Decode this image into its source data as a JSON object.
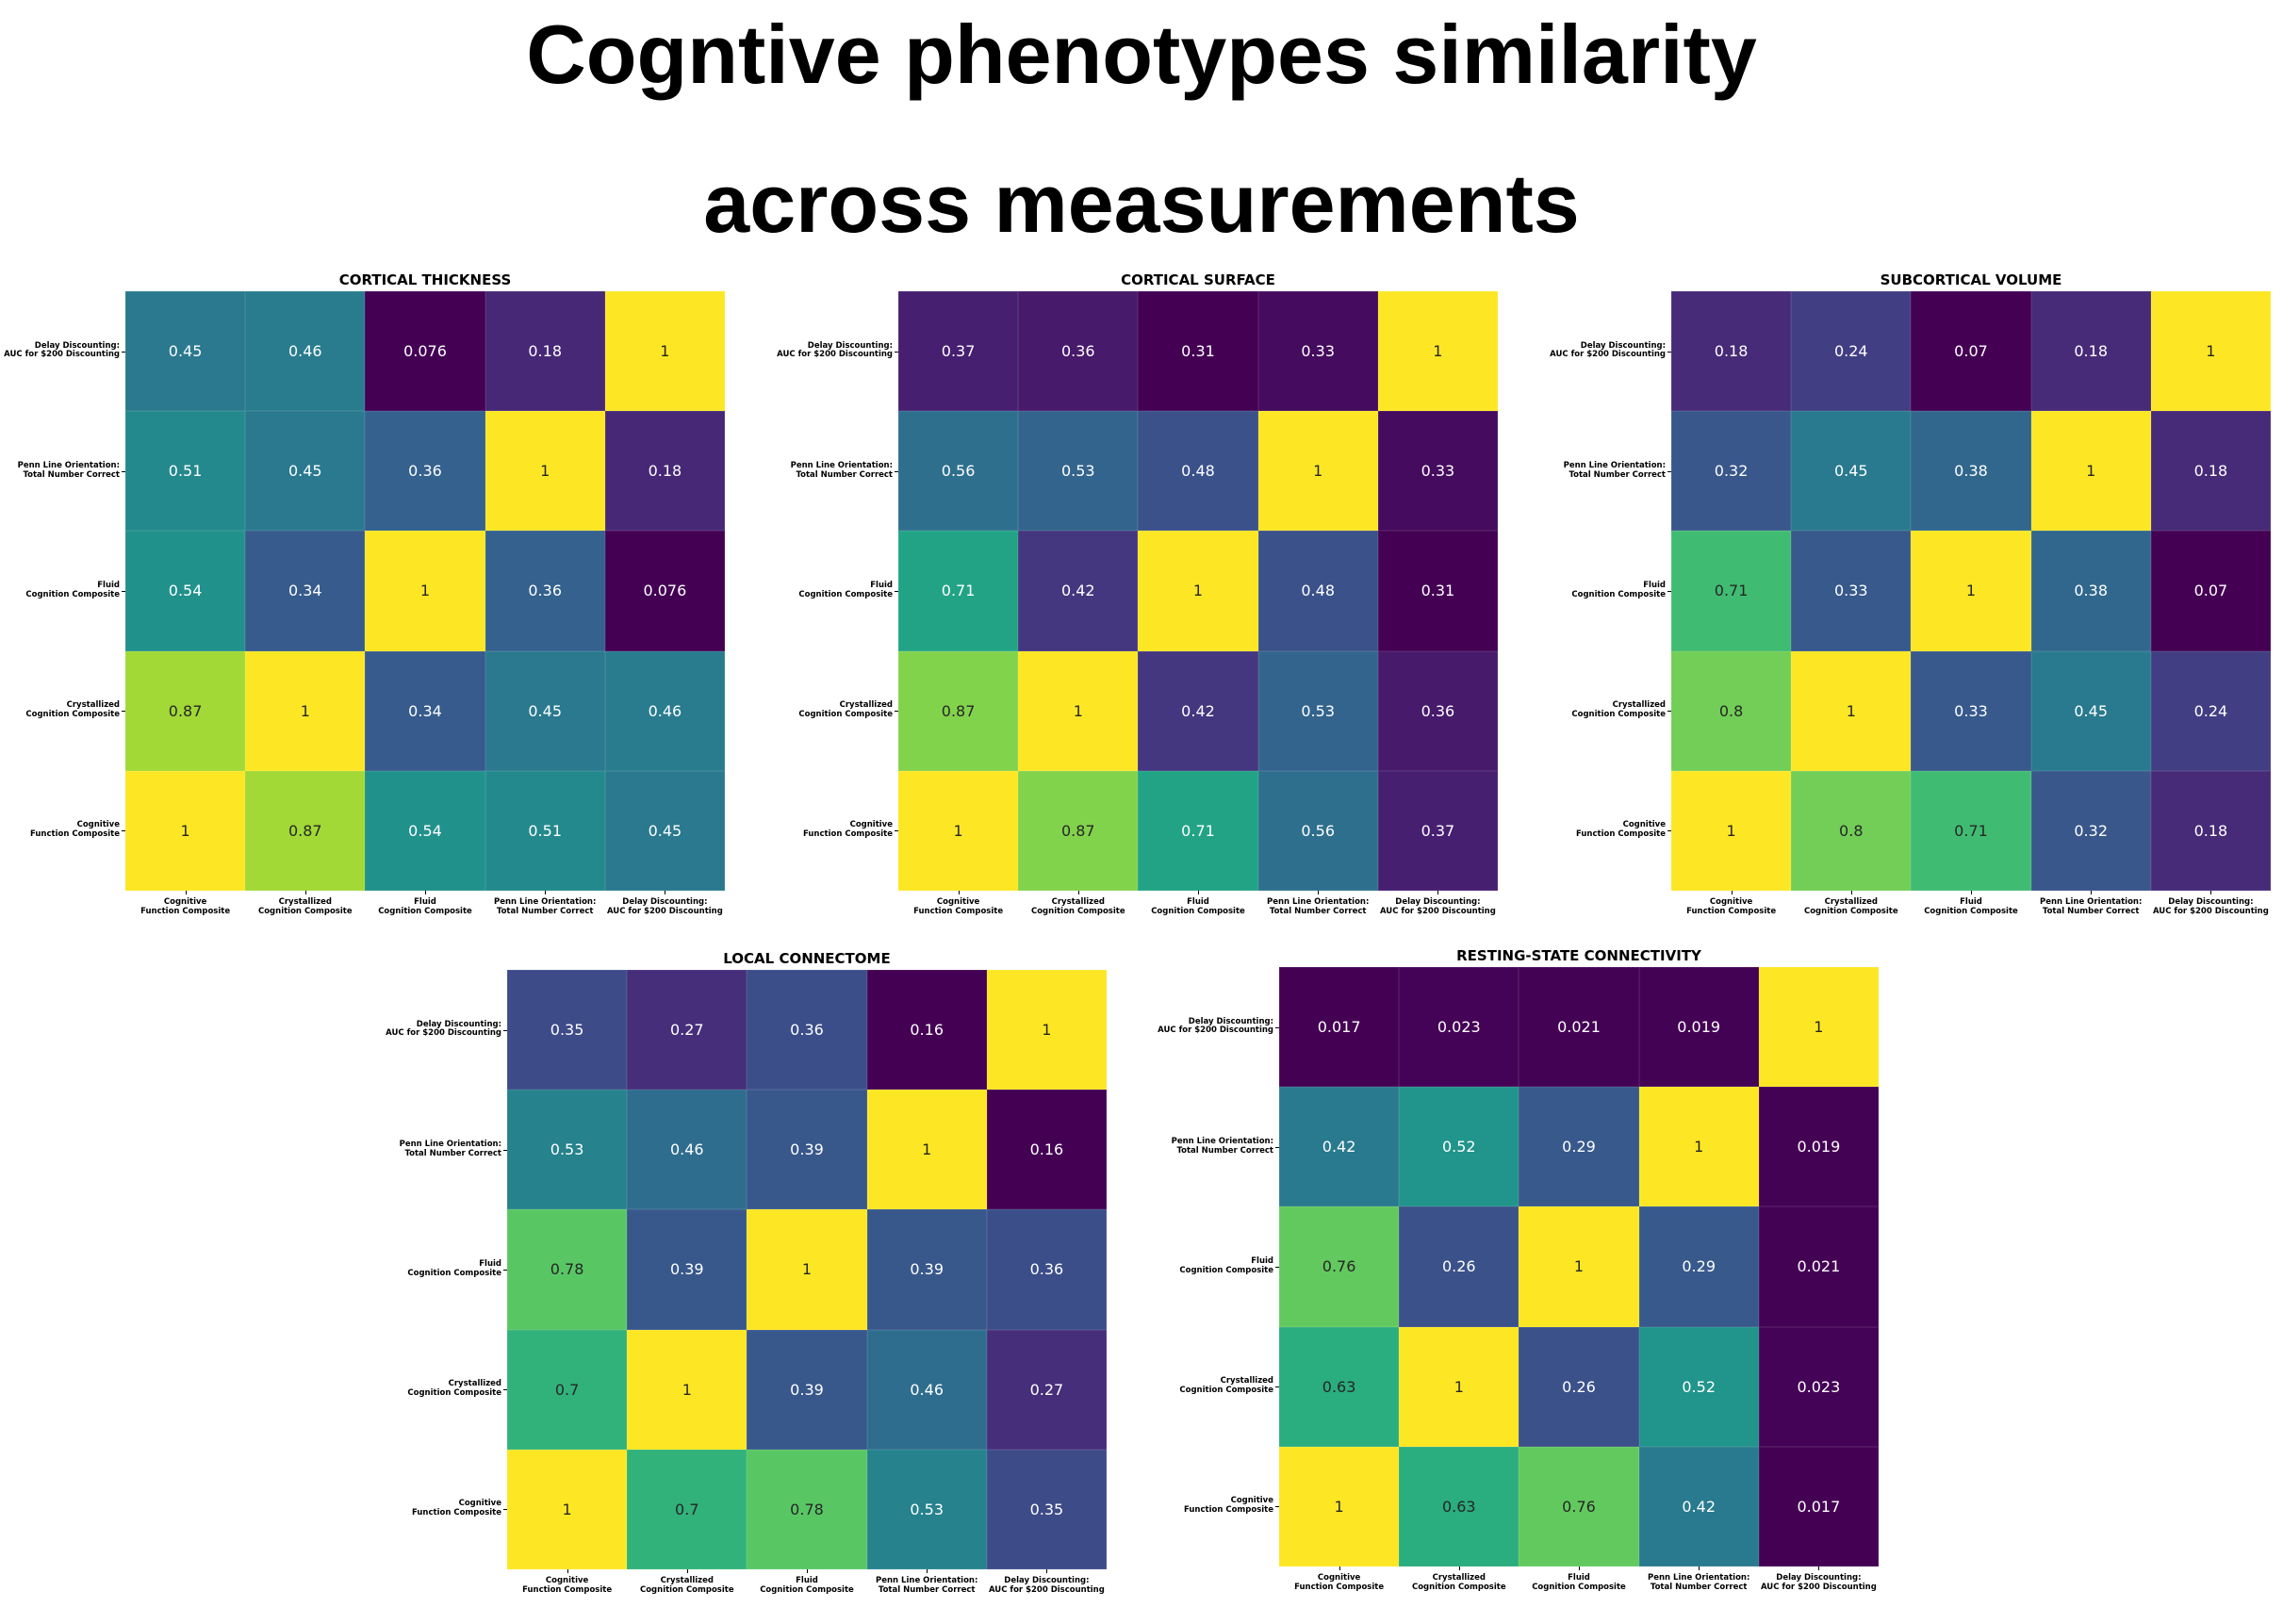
{
  "title_line1": "Cogntive phenotypes similarity",
  "title_line2": "across measurements",
  "chart_data": [
    {
      "type": "heatmap",
      "title": "CORTICAL THICKNESS",
      "labels": [
        "Cognitive\nFunction Composite",
        "Crystallized\nCognition Composite",
        "Fluid\nCognition Composite",
        "Penn Line Orientation:\nTotal Number Correct",
        "Delay Discounting:\nAUC for $200 Discounting"
      ],
      "matrix": [
        [
          1,
          0.87,
          0.54,
          0.51,
          0.45
        ],
        [
          0.87,
          1,
          0.34,
          0.45,
          0.46
        ],
        [
          0.54,
          0.34,
          1,
          0.36,
          0.076
        ],
        [
          0.51,
          0.45,
          0.36,
          1,
          0.18
        ],
        [
          0.45,
          0.46,
          0.076,
          0.18,
          1
        ]
      ]
    },
    {
      "type": "heatmap",
      "title": "CORTICAL SURFACE",
      "labels": [
        "Cognitive\nFunction Composite",
        "Crystallized\nCognition Composite",
        "Fluid\nCognition Composite",
        "Penn Line Orientation:\nTotal Number Correct",
        "Delay Discounting:\nAUC for $200 Discounting"
      ],
      "matrix": [
        [
          1,
          0.87,
          0.71,
          0.56,
          0.37
        ],
        [
          0.87,
          1,
          0.42,
          0.53,
          0.36
        ],
        [
          0.71,
          0.42,
          1,
          0.48,
          0.31
        ],
        [
          0.56,
          0.53,
          0.48,
          1,
          0.33
        ],
        [
          0.37,
          0.36,
          0.31,
          0.33,
          1
        ]
      ]
    },
    {
      "type": "heatmap",
      "title": "SUBCORTICAL VOLUME",
      "labels": [
        "Cognitive\nFunction Composite",
        "Crystallized\nCognition Composite",
        "Fluid\nCognition Composite",
        "Penn Line Orientation:\nTotal Number Correct",
        "Delay Discounting:\nAUC for $200 Discounting"
      ],
      "matrix": [
        [
          1,
          0.8,
          0.71,
          0.32,
          0.18
        ],
        [
          0.8,
          1,
          0.33,
          0.45,
          0.24
        ],
        [
          0.71,
          0.33,
          1,
          0.38,
          0.07
        ],
        [
          0.32,
          0.45,
          0.38,
          1,
          0.18
        ],
        [
          0.18,
          0.24,
          0.07,
          0.18,
          1
        ]
      ]
    },
    {
      "type": "heatmap",
      "title": "LOCAL CONNECTOME",
      "labels": [
        "Cognitive\nFunction Composite",
        "Crystallized\nCognition Composite",
        "Fluid\nCognition Composite",
        "Penn Line Orientation:\nTotal Number Correct",
        "Delay Discounting:\nAUC for $200 Discounting"
      ],
      "matrix": [
        [
          1,
          0.7,
          0.78,
          0.53,
          0.35
        ],
        [
          0.7,
          1,
          0.39,
          0.46,
          0.27
        ],
        [
          0.78,
          0.39,
          1,
          0.39,
          0.36
        ],
        [
          0.53,
          0.46,
          0.39,
          1,
          0.16
        ],
        [
          0.35,
          0.27,
          0.36,
          0.16,
          1
        ]
      ]
    },
    {
      "type": "heatmap",
      "title": "RESTING-STATE CONNECTIVITY",
      "labels": [
        "Cognitive\nFunction Composite",
        "Crystallized\nCognition Composite",
        "Fluid\nCognition Composite",
        "Penn Line Orientation:\nTotal Number Correct",
        "Delay Discounting:\nAUC for $200 Discounting"
      ],
      "matrix": [
        [
          1,
          0.63,
          0.76,
          0.42,
          0.017
        ],
        [
          0.63,
          1,
          0.26,
          0.52,
          0.023
        ],
        [
          0.76,
          0.26,
          1,
          0.29,
          0.021
        ],
        [
          0.42,
          0.52,
          0.29,
          1,
          0.019
        ],
        [
          0.017,
          0.023,
          0.021,
          0.019,
          1
        ]
      ]
    }
  ],
  "colormap": "viridis"
}
